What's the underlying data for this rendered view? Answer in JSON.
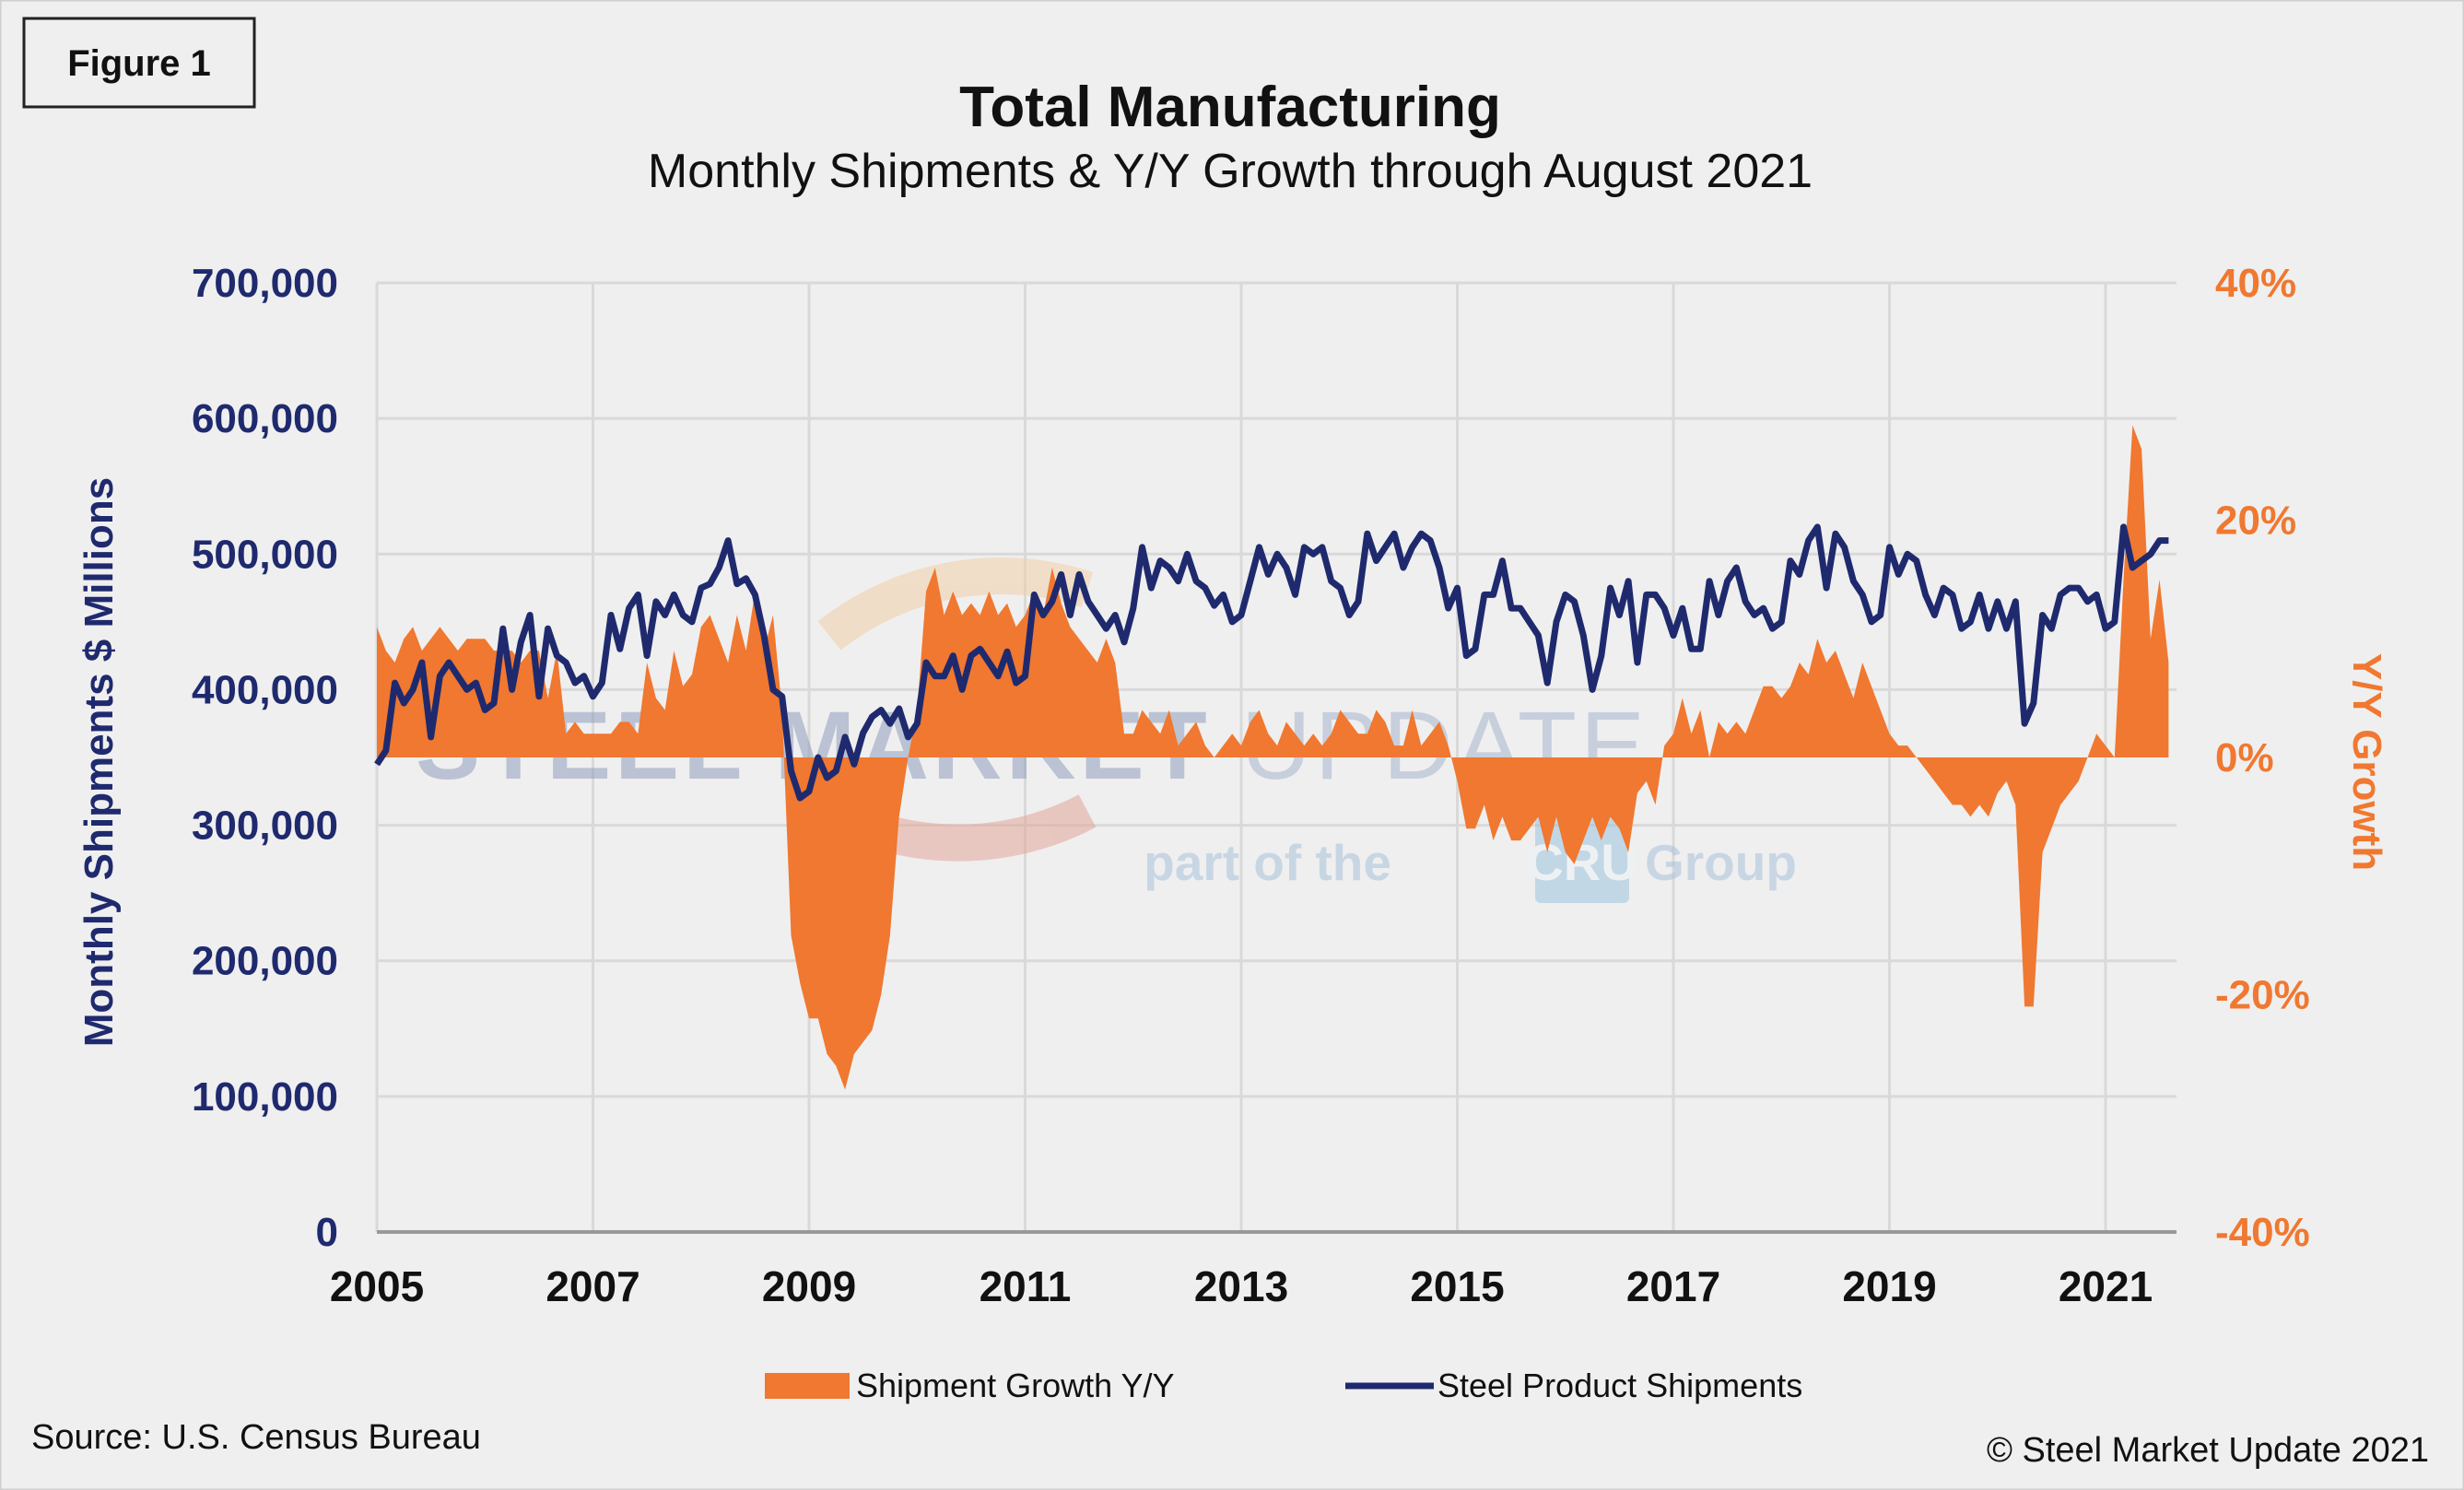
{
  "figure_label": "Figure 1",
  "source": "Source: U.S. Census Bureau",
  "copyright": "© Steel Market Update 2021",
  "watermark": {
    "line1": "STEEL MARKET UPDATE",
    "line2_prefix": "part of the",
    "line2_logo": "CRU",
    "line2_suffix": "Group"
  },
  "colors": {
    "navy": "#1f2a6e",
    "orange": "#f07830",
    "grid": "#d9d9d9",
    "background": "#efefef"
  },
  "chart_data": {
    "type": "line+area",
    "title": "Total Manufacturing",
    "subtitle": "Monthly Shipments & Y/Y Growth through August 2021",
    "ylabel": "Monthly Shipments $ Millions",
    "y2label": "Y/Y Growth",
    "ylim": [
      0,
      700000
    ],
    "y2lim": [
      -40,
      40
    ],
    "yticks": [
      "0",
      "100,000",
      "200,000",
      "300,000",
      "400,000",
      "500,000",
      "600,000",
      "700,000"
    ],
    "y2ticks": [
      "-40%",
      "-20%",
      "0%",
      "20%",
      "40%"
    ],
    "xticks": [
      "2005",
      "2007",
      "2009",
      "2011",
      "2013",
      "2015",
      "2017",
      "2019",
      "2021"
    ],
    "x_start": "2005-01",
    "x_end": "2021-08",
    "grid": true,
    "legend_position": "bottom",
    "series": [
      {
        "name": "Shipment Growth Y/Y",
        "type": "area",
        "axis": "right",
        "unit": "%",
        "values": [
          11,
          9,
          8,
          10,
          11,
          9,
          10,
          11,
          10,
          9,
          10,
          10,
          10,
          9,
          9,
          9,
          8,
          9,
          9,
          5,
          9,
          2,
          3,
          2,
          2,
          2,
          2,
          3,
          3,
          2,
          8,
          5,
          4,
          9,
          6,
          7,
          11,
          12,
          10,
          8,
          12,
          9,
          14,
          9,
          12,
          4,
          -15,
          -19,
          -22,
          -22,
          -25,
          -26,
          -28,
          -25,
          -24,
          -23,
          -20,
          -15,
          -5,
          0,
          4,
          14,
          16,
          12,
          14,
          12,
          13,
          12,
          14,
          12,
          13,
          11,
          12,
          14,
          12,
          16,
          13,
          11,
          10,
          9,
          8,
          10,
          8,
          2,
          2,
          4,
          3,
          2,
          4,
          1,
          2,
          3,
          1,
          0,
          1,
          2,
          1,
          3,
          4,
          2,
          1,
          3,
          2,
          1,
          2,
          1,
          2,
          4,
          3,
          2,
          2,
          4,
          3,
          1,
          1,
          4,
          1,
          2,
          3,
          1,
          -2,
          -6,
          -6,
          -4,
          -7,
          -5,
          -7,
          -7,
          -6,
          -5,
          -8,
          -5,
          -8,
          -9,
          -7,
          -5,
          -7,
          -5,
          -6,
          -8,
          -3,
          -2,
          -4,
          1,
          2,
          5,
          2,
          4,
          0,
          3,
          2,
          3,
          2,
          4,
          6,
          6,
          5,
          6,
          8,
          7,
          10,
          8,
          9,
          7,
          5,
          8,
          6,
          4,
          2,
          1,
          1,
          0,
          -1,
          -2,
          -3,
          -4,
          -4,
          -5,
          -4,
          -5,
          -3,
          -2,
          -4,
          -21,
          -21,
          -8,
          -6,
          -4,
          -3,
          -2,
          0,
          2,
          1,
          0,
          15,
          28,
          26,
          10,
          15,
          8
        ]
      },
      {
        "name": "Steel Product Shipments",
        "type": "line",
        "axis": "left",
        "unit": "$ millions",
        "values": [
          345000,
          355000,
          405000,
          390000,
          400000,
          420000,
          365000,
          410000,
          420000,
          410000,
          400000,
          405000,
          385000,
          390000,
          445000,
          400000,
          435000,
          455000,
          395000,
          445000,
          425000,
          420000,
          405000,
          410000,
          395000,
          405000,
          455000,
          430000,
          460000,
          470000,
          425000,
          465000,
          455000,
          470000,
          455000,
          450000,
          475000,
          478000,
          490000,
          510000,
          478000,
          482000,
          470000,
          440000,
          400000,
          395000,
          340000,
          320000,
          325000,
          350000,
          335000,
          340000,
          365000,
          345000,
          368000,
          380000,
          385000,
          375000,
          386000,
          365000,
          375000,
          420000,
          410000,
          410000,
          425000,
          400000,
          425000,
          430000,
          420000,
          410000,
          428000,
          405000,
          410000,
          470000,
          455000,
          465000,
          485000,
          455000,
          485000,
          465000,
          455000,
          445000,
          455000,
          435000,
          460000,
          505000,
          475000,
          495000,
          490000,
          480000,
          500000,
          480000,
          475000,
          462000,
          470000,
          450000,
          455000,
          480000,
          505000,
          485000,
          500000,
          490000,
          470000,
          505000,
          500000,
          505000,
          480000,
          475000,
          455000,
          465000,
          515000,
          495000,
          505000,
          515000,
          490000,
          505000,
          515000,
          510000,
          490000,
          460000,
          475000,
          425000,
          430000,
          470000,
          470000,
          495000,
          460000,
          460000,
          450000,
          440000,
          405000,
          450000,
          470000,
          465000,
          440000,
          400000,
          425000,
          475000,
          455000,
          480000,
          420000,
          470000,
          470000,
          460000,
          440000,
          460000,
          430000,
          430000,
          480000,
          455000,
          480000,
          490000,
          465000,
          455000,
          460000,
          445000,
          450000,
          495000,
          485000,
          510000,
          520000,
          475000,
          515000,
          505000,
          480000,
          470000,
          450000,
          455000,
          505000,
          485000,
          500000,
          495000,
          470000,
          455000,
          475000,
          470000,
          445000,
          450000,
          470000,
          445000,
          465000,
          445000,
          465000,
          375000,
          390000,
          455000,
          445000,
          470000,
          475000,
          475000,
          465000,
          470000,
          445000,
          450000,
          520000,
          490000,
          495000,
          500000,
          510000,
          510000
        ]
      }
    ]
  }
}
